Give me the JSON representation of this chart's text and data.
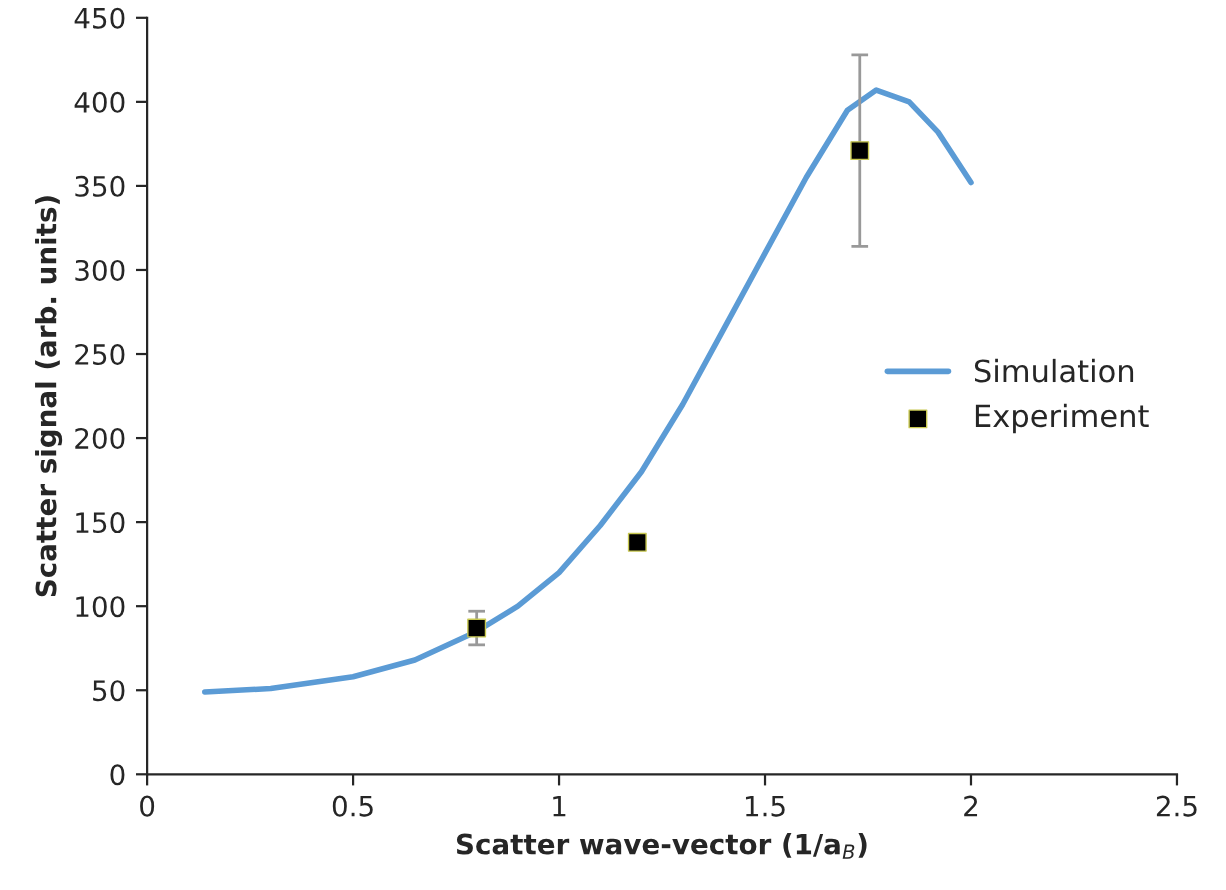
{
  "chart_data": {
    "type": "line",
    "xlabel": "Scatter wave-vector (1/a$_{B}$)",
    "ylabel": "Scatter signal (arb. units)",
    "xlim": [
      0,
      2.5
    ],
    "xticks": [
      0,
      0.5,
      1,
      1.5,
      2,
      2.5
    ],
    "ylim": [
      0,
      450
    ],
    "yticks": [
      0,
      50,
      100,
      150,
      200,
      250,
      300,
      350,
      400,
      450
    ],
    "grid": false,
    "legend": "right",
    "series": [
      {
        "name": "Simulation",
        "color": "#5b9bd5",
        "marker": "none",
        "x": [
          0.14,
          0.3,
          0.5,
          0.65,
          0.8,
          0.9,
          1.0,
          1.1,
          1.2,
          1.3,
          1.4,
          1.5,
          1.6,
          1.7,
          1.77,
          1.85,
          1.92,
          2.0
        ],
        "values": [
          49,
          51,
          58,
          68,
          85,
          100,
          120,
          148,
          180,
          220,
          265,
          310,
          355,
          395,
          407,
          400,
          382,
          352
        ]
      },
      {
        "name": "Experiment",
        "type": "scatter",
        "color": "#000000",
        "marker": "square",
        "x": [
          0.8,
          1.19,
          1.73
        ],
        "values": [
          87,
          138,
          371
        ],
        "errors": [
          10,
          null,
          57
        ]
      }
    ]
  }
}
